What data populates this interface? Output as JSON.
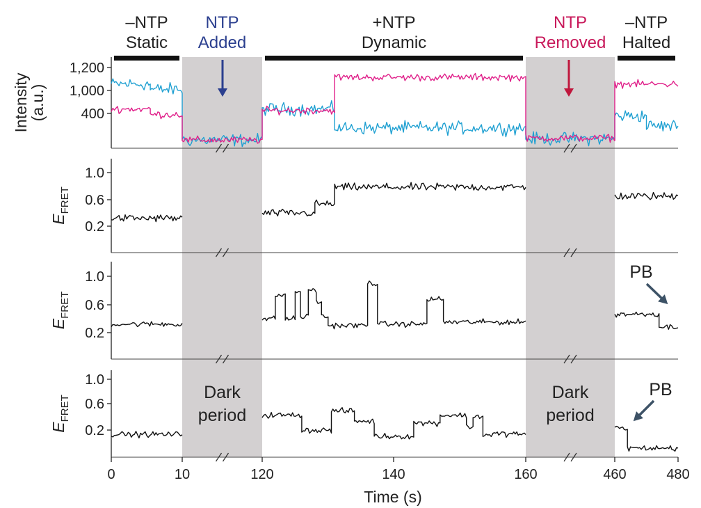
{
  "chart_data": {
    "type": "line",
    "xlabel": "Time (s)",
    "x_ticks": [
      "0",
      "10",
      "120",
      "140",
      "160",
      "460",
      "480"
    ],
    "conditions": [
      {
        "line1": "–NTP",
        "line2": "Static",
        "color": "#222222"
      },
      {
        "line1": "NTP",
        "line2": "Added",
        "color": "#2b3f8f"
      },
      {
        "line1": "+NTP",
        "line2": "Dynamic",
        "color": "#222222"
      },
      {
        "line1": "NTP",
        "line2": "Removed",
        "color": "#c8185a"
      },
      {
        "line1": "–NTP",
        "line2": "Halted",
        "color": "#222222"
      }
    ],
    "dark_period_label": [
      "Dark",
      "period"
    ],
    "segments": [
      {
        "t_start": 0,
        "t_end": 10,
        "shaded": false
      },
      {
        "t_start": 10,
        "t_end": 120,
        "shaded": true,
        "axis_break": true
      },
      {
        "t_start": 120,
        "t_end": 160,
        "shaded": false
      },
      {
        "t_start": 160,
        "t_end": 460,
        "shaded": true,
        "axis_break": true
      },
      {
        "t_start": 460,
        "t_end": 480,
        "shaded": false
      }
    ],
    "colors": {
      "donor": "#1fa0d2",
      "acceptor": "#e0208a",
      "fret": "#111111",
      "shade": "#d3d0d1",
      "arrow_added": "#2b3f8f",
      "arrow_removed": "#c0173d",
      "pb_arrow": "#3d5266"
    },
    "panels": [
      {
        "id": "intensity",
        "ylabel": [
          "Intensity",
          "(a.u.)"
        ],
        "ytick_labels": [
          "400",
          "1,000",
          "1,200"
        ],
        "ylim": [
          0,
          1350
        ],
        "series": [
          {
            "key": "donor",
            "color": "#1fa0d2",
            "sigma": 80,
            "levels": [
              [
                0,
                5.5,
                950
              ],
              [
                5.5,
                10,
                870
              ],
              [
                10,
                120,
                120
              ],
              [
                120,
                131,
                580
              ],
              [
                131,
                160,
                300
              ],
              [
                160,
                460,
                140
              ],
              [
                460,
                470,
                480
              ],
              [
                470,
                480,
                330
              ]
            ]
          },
          {
            "key": "acceptor",
            "color": "#e0208a",
            "sigma": 45,
            "levels": [
              [
                0,
                5.5,
                580
              ],
              [
                5.5,
                10,
                500
              ],
              [
                10,
                120,
                120
              ],
              [
                120,
                131,
                560
              ],
              [
                131,
                160,
                1050
              ],
              [
                160,
                460,
                150
              ],
              [
                460,
                480,
                950
              ]
            ]
          }
        ]
      },
      {
        "id": "fret1",
        "ylabel": "E_FRET",
        "ytick_labels": [
          "0.2",
          "0.6",
          "1.0"
        ],
        "ylim": [
          -0.15,
          1.3
        ],
        "series": [
          {
            "key": "fret",
            "color": "#111111",
            "sigma": 0.05,
            "levels": [
              [
                0,
                10,
                0.38
              ],
              [
                120,
                128,
                0.46
              ],
              [
                128,
                131,
                0.6
              ],
              [
                131,
                160,
                0.86
              ],
              [
                460,
                480,
                0.72
              ]
            ]
          }
        ]
      },
      {
        "id": "fret2",
        "ylabel": "E_FRET",
        "ytick_labels": [
          "0.2",
          "0.6",
          "1.0"
        ],
        "ylim": [
          -0.15,
          1.3
        ],
        "annotation": "PB",
        "series": [
          {
            "key": "fret",
            "color": "#111111",
            "sigma": 0.035,
            "levels": [
              [
                0,
                10,
                0.37
              ],
              [
                120,
                122,
                0.45
              ],
              [
                122,
                123.5,
                0.8
              ],
              [
                123.5,
                125,
                0.45
              ],
              [
                125,
                125.8,
                0.85
              ],
              [
                125.8,
                127,
                0.48
              ],
              [
                127,
                128.2,
                0.88
              ],
              [
                128.2,
                129,
                0.7
              ],
              [
                129,
                130,
                0.48
              ],
              [
                130,
                136,
                0.35
              ],
              [
                136,
                137.5,
                0.98
              ],
              [
                137.5,
                145,
                0.37
              ],
              [
                145,
                147.5,
                0.74
              ],
              [
                147.5,
                160,
                0.4
              ],
              [
                460,
                474,
                0.52
              ],
              [
                474,
                480,
                0.33
              ]
            ]
          }
        ]
      },
      {
        "id": "fret3",
        "ylabel": "E_FRET",
        "ytick_labels": [
          "0.2",
          "0.6",
          "1.0"
        ],
        "ylim": [
          -0.15,
          1.3
        ],
        "annotation": "PB",
        "series": [
          {
            "key": "fret",
            "color": "#111111",
            "sigma": 0.04,
            "levels": [
              [
                0,
                10,
                0.23
              ],
              [
                120,
                126,
                0.55
              ],
              [
                126,
                130.5,
                0.3
              ],
              [
                130.5,
                134,
                0.62
              ],
              [
                134,
                137,
                0.45
              ],
              [
                137,
                143,
                0.2
              ],
              [
                143,
                147,
                0.42
              ],
              [
                147,
                151,
                0.55
              ],
              [
                151,
                152,
                0.35
              ],
              [
                152,
                153.5,
                0.53
              ],
              [
                153.5,
                155,
                0.22
              ],
              [
                155,
                160,
                0.24
              ],
              [
                460,
                464,
                0.33
              ],
              [
                464,
                480,
                0.0
              ]
            ]
          }
        ]
      }
    ]
  }
}
